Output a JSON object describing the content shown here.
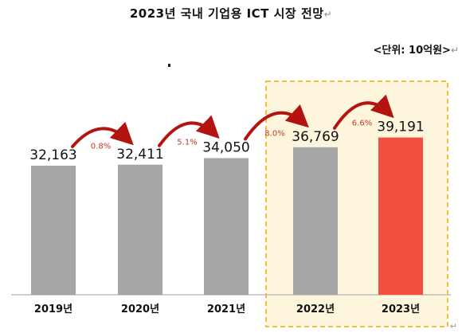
{
  "title": "2023년 국내 기업용 ICT 시장 전망",
  "unit_label": "<단위: 10억원>",
  "chart_data": {
    "type": "bar",
    "title": "2023년 국내 기업용 ICT 시장 전망",
    "xlabel": "",
    "ylabel": "",
    "unit": "10억원",
    "categories": [
      "2019년",
      "2020년",
      "2021년",
      "2022년",
      "2023년"
    ],
    "values": [
      32163,
      32411,
      34050,
      36769,
      39191
    ],
    "value_labels": [
      "32,163",
      "32,411",
      "34,050",
      "36,769",
      "39,191"
    ],
    "growth_rates": [
      "0.8%",
      "5.1%",
      "8.0%",
      "6.6%"
    ],
    "bar_colors": [
      "#a6a6a6",
      "#a6a6a6",
      "#a6a6a6",
      "#a6a6a6",
      "#f24e3f"
    ],
    "highlight_categories": [
      "2022년",
      "2023년"
    ],
    "highlight_color": "#fdf6dd",
    "highlight_border_color": "#f2c233",
    "arrow_color": "#b3140f",
    "growth_text_color": "#c0392b",
    "grid": false,
    "legend": "none"
  }
}
